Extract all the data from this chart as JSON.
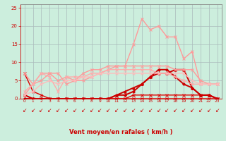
{
  "x": [
    0,
    1,
    2,
    3,
    4,
    5,
    6,
    7,
    8,
    9,
    10,
    11,
    12,
    13,
    14,
    15,
    16,
    17,
    18,
    19,
    20,
    21,
    22,
    23
  ],
  "series": [
    {
      "y": [
        7,
        2,
        1,
        0,
        0,
        0,
        0,
        0,
        0,
        0,
        0,
        0,
        0,
        0,
        0,
        0,
        0,
        0,
        0,
        0,
        0,
        0,
        0,
        0
      ],
      "color": "#dd0000",
      "lw": 1.0,
      "marker": "x",
      "ms": 2.5
    },
    {
      "y": [
        1,
        0,
        0,
        0,
        0,
        0,
        0,
        0,
        0,
        0,
        0,
        0,
        0,
        1,
        1,
        1,
        1,
        1,
        1,
        1,
        1,
        1,
        1,
        0
      ],
      "color": "#dd0000",
      "lw": 1.0,
      "marker": "x",
      "ms": 2.5
    },
    {
      "y": [
        1,
        0,
        0,
        0,
        0,
        0,
        0,
        0,
        0,
        0,
        0,
        1,
        2,
        3,
        4,
        6,
        7,
        7,
        8,
        8,
        3,
        1,
        1,
        0
      ],
      "color": "#cc0000",
      "lw": 1.4,
      "marker": "^",
      "ms": 2.5
    },
    {
      "y": [
        0,
        0,
        0,
        0,
        0,
        0,
        0,
        0,
        0,
        0,
        0,
        1,
        1,
        2,
        4,
        6,
        8,
        8,
        6,
        4,
        3,
        1,
        1,
        0
      ],
      "color": "#cc0000",
      "lw": 1.4,
      "marker": "D",
      "ms": 2.0
    },
    {
      "y": [
        7,
        4,
        5,
        7,
        7,
        4,
        5,
        5,
        6,
        7,
        8,
        9,
        9,
        15,
        22,
        19,
        20,
        17,
        17,
        11,
        13,
        4,
        4,
        4
      ],
      "color": "#ff9999",
      "lw": 1.0,
      "marker": "x",
      "ms": 2.5
    },
    {
      "y": [
        1,
        4,
        7,
        7,
        5,
        6,
        5,
        7,
        8,
        8,
        9,
        9,
        9,
        9,
        9,
        9,
        9,
        9,
        8,
        8,
        8,
        5,
        4,
        4
      ],
      "color": "#ff9999",
      "lw": 1.0,
      "marker": "x",
      "ms": 2.5
    },
    {
      "y": [
        2,
        4,
        7,
        6,
        2,
        6,
        6,
        6,
        7,
        7,
        8,
        8,
        8,
        8,
        8,
        8,
        7,
        7,
        6,
        5,
        4,
        4,
        4,
        4
      ],
      "color": "#ffaaaa",
      "lw": 1.0,
      "marker": "x",
      "ms": 2.5
    },
    {
      "y": [
        1,
        2,
        4,
        5,
        4,
        5,
        5,
        6,
        6,
        7,
        7,
        7,
        7,
        7,
        7,
        7,
        7,
        7,
        7,
        7,
        5,
        4,
        4,
        4
      ],
      "color": "#ffbbbb",
      "lw": 1.0,
      "marker": "x",
      "ms": 2.5
    }
  ],
  "xlabel": "Vent moyen/en rafales ( km/h )",
  "ylim": [
    0,
    26
  ],
  "xlim": [
    -0.5,
    23.5
  ],
  "yticks": [
    0,
    5,
    10,
    15,
    20,
    25
  ],
  "xticks": [
    0,
    1,
    2,
    3,
    4,
    5,
    6,
    7,
    8,
    9,
    10,
    11,
    12,
    13,
    14,
    15,
    16,
    17,
    18,
    19,
    20,
    21,
    22,
    23
  ],
  "bg_color": "#cceedd",
  "grid_color": "#aabbbb",
  "tick_color": "#cc0000",
  "label_color": "#cc0000",
  "arrow_color": "#cc0000",
  "arrow_char": "↙"
}
